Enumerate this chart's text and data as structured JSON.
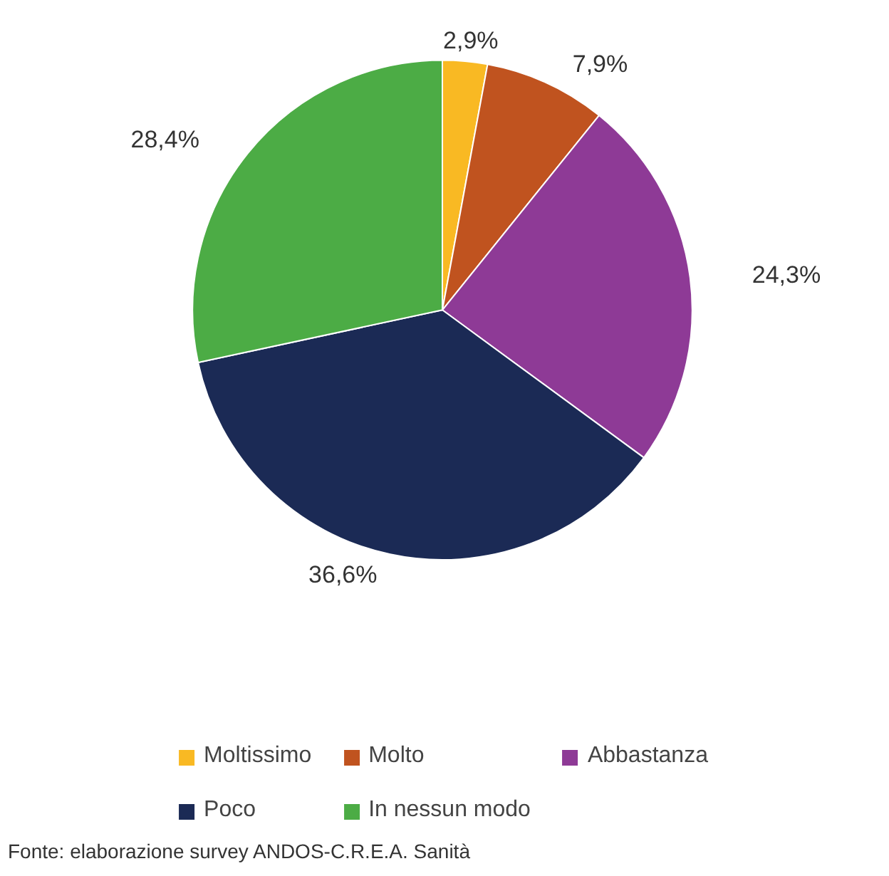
{
  "chart_data": {
    "type": "pie",
    "categories": [
      "Moltissimo",
      "Molto",
      "Abbastanza",
      "Poco",
      "In nessun modo"
    ],
    "values": [
      2.9,
      7.9,
      24.3,
      36.6,
      28.4
    ],
    "colors": [
      "#f9b923",
      "#c0531f",
      "#8e3a96",
      "#1b2a55",
      "#4cac45"
    ],
    "value_labels": [
      "2,9%",
      "7,9%",
      "24,3%",
      "36,6%",
      "28,4%"
    ],
    "legend": "bottom",
    "annotations": [
      "Fonte: elaborazione survey ANDOS-C.R.E.A. Sanità"
    ]
  }
}
